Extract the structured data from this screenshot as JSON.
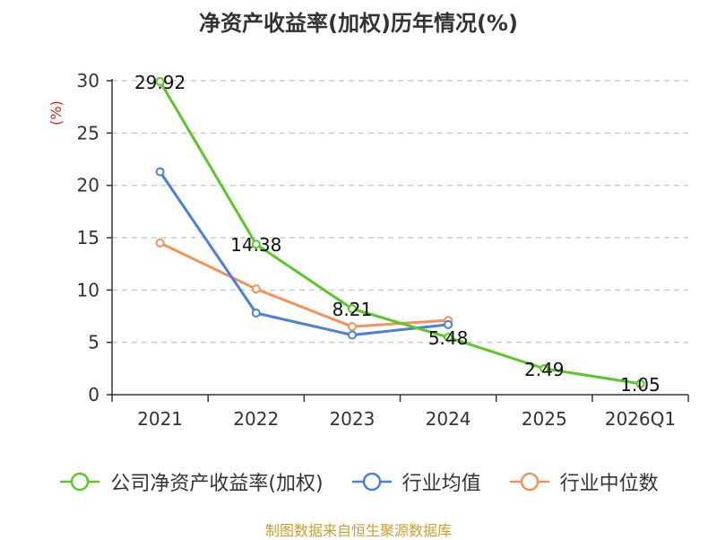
{
  "chart_data": {
    "type": "line",
    "title": "净资产收益率(加权)历年情况(%)",
    "ylabel": "(%)",
    "xlabel": "",
    "categories": [
      "2021",
      "2022",
      "2023",
      "2024",
      "2025",
      "2026Q1"
    ],
    "ylim": [
      0,
      30
    ],
    "yticks": [
      0,
      5,
      10,
      15,
      20,
      25,
      30
    ],
    "grid": true,
    "legend_position": "bottom",
    "series": [
      {
        "name": "公司净资产收益率(加权)",
        "color": "#5ac828",
        "values": [
          29.92,
          14.38,
          8.21,
          5.48,
          2.49,
          1.05
        ],
        "labels": [
          "29.92",
          "14.38",
          "8.21",
          "5.48",
          "2.49",
          "1.05"
        ],
        "show_labels": true
      },
      {
        "name": "行业均值",
        "color": "#4a7fdc",
        "values": [
          21.3,
          7.8,
          5.7,
          6.7,
          null,
          null
        ],
        "show_labels": false
      },
      {
        "name": "行业中位数",
        "color": "#f5925c",
        "values": [
          14.5,
          10.1,
          6.5,
          7.1,
          null,
          null
        ],
        "show_labels": false
      }
    ],
    "ylabel_color": "#e02020"
  },
  "footer": {
    "source": "制图数据来自恒生聚源数据库"
  }
}
